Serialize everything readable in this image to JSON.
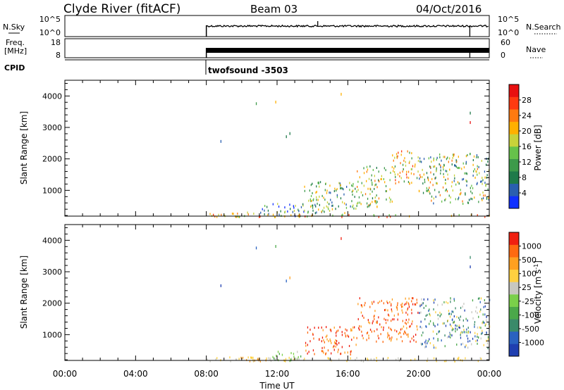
{
  "header": {
    "station": "Clyde River (fitACF)",
    "beam": "Beam 03",
    "date": "04/Oct/2016"
  },
  "top_panels": {
    "nsky_label": "N.Sky",
    "nsky_ticks": [
      "10^5",
      "10^0"
    ],
    "nsearch_label": "N.Search",
    "freq_label_1": "Freq.",
    "freq_label_2": "[MHz]",
    "freq_ticks": [
      "18",
      "8"
    ],
    "nave_label": "Nave",
    "nave_ticks": [
      "60",
      "0"
    ],
    "cpid_label": "CPID",
    "cpid_value": "twofsound -3503"
  },
  "chart_data": [
    {
      "type": "heatmap",
      "title": "",
      "ylabel": "Slant Range [km]",
      "xlabel": "",
      "x_range_hours": [
        0,
        24
      ],
      "ylim": [
        180,
        4500
      ],
      "yticks": [
        "1000",
        "2000",
        "3000",
        "4000"
      ],
      "colorbar": {
        "label": "Power [dB]",
        "ticks": [
          "4",
          "8",
          "12",
          "16",
          "20",
          "24",
          "28"
        ],
        "colors": [
          "#1030ff",
          "#2a5fb0",
          "#1f7a4a",
          "#3d9a4a",
          "#66c24a",
          "#c8d23a",
          "#ffb000",
          "#ff7a10",
          "#ff3a10",
          "#e81010"
        ]
      },
      "scatter_regions": [
        {
          "t0": 8.0,
          "t1": 11.0,
          "r0": 180,
          "r1": 330,
          "levels": [
            5,
            6,
            7
          ]
        },
        {
          "t0": 11.0,
          "t1": 13.5,
          "r0": 180,
          "r1": 600,
          "levels": [
            0,
            1,
            2,
            3,
            4,
            5
          ]
        },
        {
          "t0": 13.5,
          "t1": 16.5,
          "r0": 300,
          "r1": 1300,
          "levels": [
            1,
            2,
            3,
            4,
            5,
            6
          ]
        },
        {
          "t0": 16.5,
          "t1": 18.5,
          "r0": 500,
          "r1": 1800,
          "levels": [
            2,
            3,
            4,
            5,
            6,
            7
          ]
        },
        {
          "t0": 18.5,
          "t1": 20.0,
          "r0": 1200,
          "r1": 2300,
          "levels": [
            3,
            5,
            6,
            7,
            8
          ]
        },
        {
          "t0": 20.0,
          "t1": 24.0,
          "r0": 600,
          "r1": 2200,
          "levels": [
            1,
            2,
            3,
            4,
            5,
            6,
            7
          ]
        },
        {
          "t0": 8.0,
          "t1": 24.0,
          "r0": 180,
          "r1": 260,
          "levels": [
            4,
            6,
            8
          ]
        }
      ]
    },
    {
      "type": "heatmap",
      "title": "",
      "ylabel": "Slant Range [km]",
      "xlabel": "Time UT",
      "x_range_hours": [
        0,
        24
      ],
      "xticks": [
        "00:00",
        "04:00",
        "08:00",
        "12:00",
        "16:00",
        "20:00",
        "00:00"
      ],
      "ylim": [
        180,
        4500
      ],
      "yticks": [
        "1000",
        "2000",
        "3000",
        "4000"
      ],
      "colorbar": {
        "label": "Velocity [m s^-1]",
        "ticks": [
          "1000",
          "500",
          "100",
          "25",
          "-25",
          "-100",
          "-500",
          "-1000"
        ],
        "colors": [
          "#1f3fb0",
          "#2a62c0",
          "#3a8a6a",
          "#4ba84a",
          "#7ad04a",
          "#c8c8c0",
          "#ffd040",
          "#ffa020",
          "#ff6a10",
          "#f02010"
        ]
      },
      "scatter_regions": [
        {
          "t0": 8.0,
          "t1": 11.5,
          "r0": 180,
          "r1": 330,
          "levels": [
            6,
            6,
            7
          ]
        },
        {
          "t0": 11.5,
          "t1": 13.5,
          "r0": 180,
          "r1": 500,
          "levels": [
            3,
            4,
            4,
            5
          ]
        },
        {
          "t0": 13.5,
          "t1": 16.5,
          "r0": 400,
          "r1": 1300,
          "levels": [
            7,
            8,
            9
          ]
        },
        {
          "t0": 16.5,
          "t1": 20.0,
          "r0": 800,
          "r1": 2200,
          "levels": [
            7,
            8,
            9
          ]
        },
        {
          "t0": 20.0,
          "t1": 24.0,
          "r0": 600,
          "r1": 2200,
          "levels": [
            0,
            1,
            2,
            3,
            5,
            6
          ]
        },
        {
          "t0": 8.0,
          "t1": 24.0,
          "r0": 180,
          "r1": 300,
          "levels": [
            5,
            6
          ]
        }
      ]
    }
  ]
}
